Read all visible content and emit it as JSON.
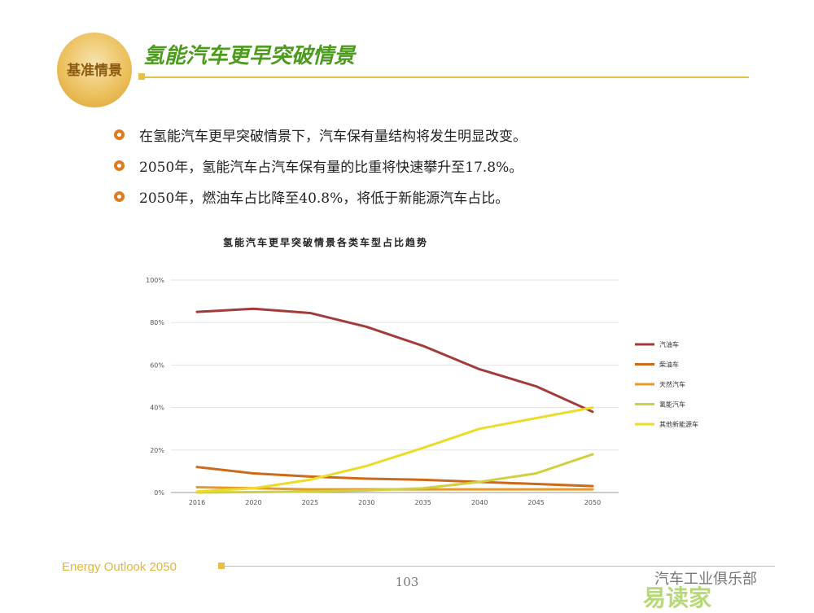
{
  "header": {
    "emblem_label": "基准情景",
    "title": "氢能汽车更早突破情景"
  },
  "bullets": [
    "在氢能汽车更早突破情景下，汽车保有量结构将发生明显改变。",
    "2050年，氢能汽车占汽车保有量的比重将快速攀升至17.8%。",
    "2050年，燃油车占比降至40.8%，将低于新能源汽车占比。"
  ],
  "chart_data": {
    "type": "line",
    "title": "氢能汽车更早突破情景各类车型占比趋势",
    "categories": [
      "2016",
      "2020",
      "2025",
      "2030",
      "2035",
      "2040",
      "2045",
      "2050"
    ],
    "y_ticks": [
      "0%",
      "20%",
      "40%",
      "60%",
      "80%",
      "100%"
    ],
    "ylim": [
      0,
      100
    ],
    "grid": true,
    "legend_position": "right",
    "series": [
      {
        "name": "汽油车",
        "color": "#a33b3b",
        "values": [
          85,
          86.5,
          84.5,
          78,
          69,
          58,
          50,
          38
        ]
      },
      {
        "name": "柴油车",
        "color": "#cc6a1a",
        "values": [
          12,
          9,
          7.5,
          6.5,
          6,
          5,
          4,
          3
        ]
      },
      {
        "name": "天然汽车",
        "color": "#e59a2a",
        "values": [
          2.5,
          2,
          1.5,
          1.5,
          1.5,
          1.5,
          1.5,
          1.5
        ]
      },
      {
        "name": "氢能汽车",
        "color": "#cfcf3f",
        "values": [
          0,
          0.2,
          0.5,
          1,
          2,
          5,
          9,
          18
        ]
      },
      {
        "name": "其他新能源车",
        "color": "#eadd2a",
        "values": [
          0.5,
          2,
          6,
          12.5,
          21,
          30,
          35,
          40
        ]
      }
    ]
  },
  "footer": {
    "source": "Energy Outlook 2050",
    "page_number": "103",
    "watermark_text": "汽车工业俱乐部",
    "watermark_logo": "易读家"
  }
}
